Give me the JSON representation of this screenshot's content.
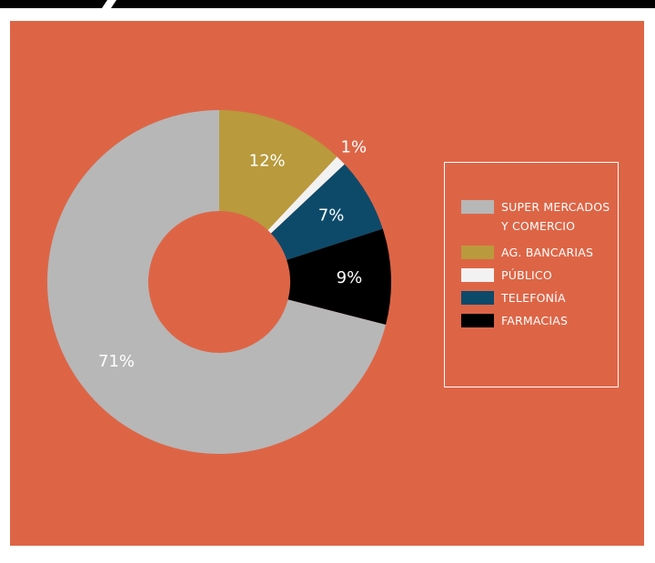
{
  "colors": {
    "background": "#dd6546",
    "top_bar": "#000000",
    "text": "#ffffff"
  },
  "chart_data": {
    "type": "pie",
    "donut": true,
    "title": "",
    "slices": [
      {
        "name": "AG. BANCARIAS",
        "value": 12,
        "label": "12%",
        "color": "#b99a3c"
      },
      {
        "name": "PÚBLICO",
        "value": 1,
        "label": "1%",
        "color": "#f2f2f2"
      },
      {
        "name": "TELEFONÍA",
        "value": 7,
        "label": "7%",
        "color": "#0d4a6a"
      },
      {
        "name": "FARMACIAS",
        "value": 9,
        "label": "9%",
        "color": "#000000"
      },
      {
        "name": "SUPER MERCADOS Y COMERCIO",
        "value": 71,
        "label": "71%",
        "color": "#b7b7b7"
      }
    ],
    "legend": {
      "placement": "right",
      "items": [
        {
          "label": "SUPER MERCADOS Y COMERCIO",
          "color": "#b7b7b7"
        },
        {
          "label": "AG. BANCARIAS",
          "color": "#b99a3c"
        },
        {
          "label": "PÚBLICO",
          "color": "#f2f2f2"
        },
        {
          "label": "TELEFONÍA",
          "color": "#0d4a6a"
        },
        {
          "label": "FARMACIAS",
          "color": "#000000"
        }
      ]
    }
  }
}
